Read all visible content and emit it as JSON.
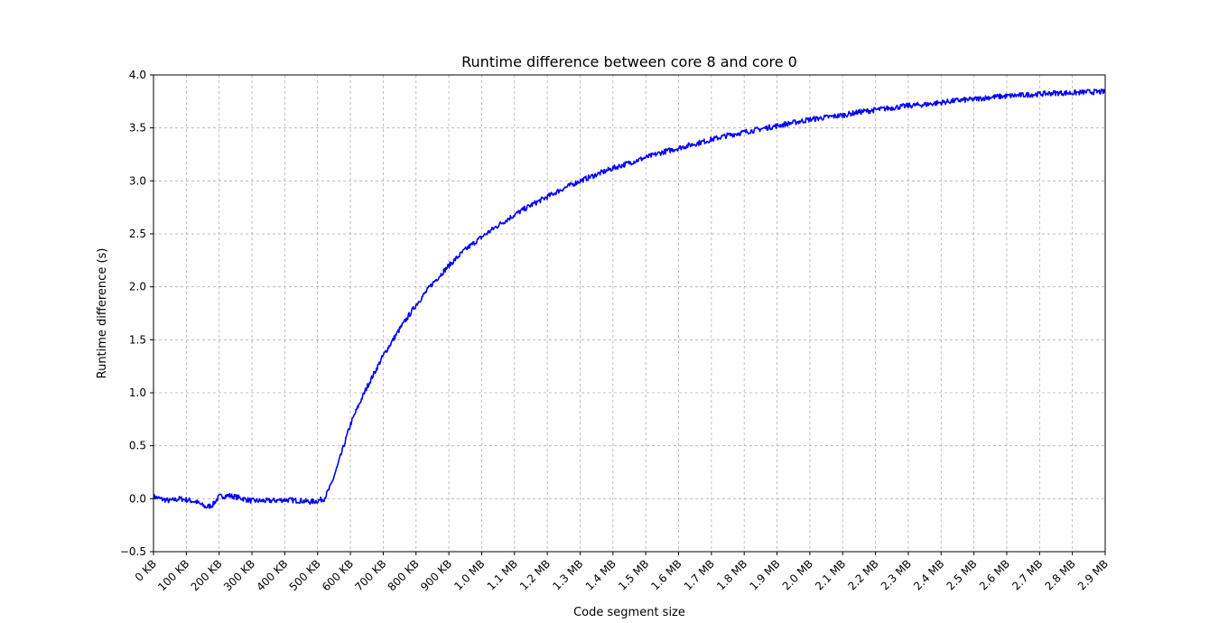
{
  "chart_data": {
    "type": "line",
    "title": "Runtime difference between core 8 and core 0",
    "xlabel": "Code segment size",
    "ylabel": "Runtime difference (s)",
    "x_tick_labels": [
      "0 KB",
      "100 KB",
      "200 KB",
      "300 KB",
      "400 KB",
      "500 KB",
      "600 KB",
      "700 KB",
      "800 KB",
      "900 KB",
      "1.0 MB",
      "1.1 MB",
      "1.2 MB",
      "1.3 MB",
      "1.4 MB",
      "1.5 MB",
      "1.6 MB",
      "1.7 MB",
      "1.8 MB",
      "1.9 MB",
      "2.0 MB",
      "2.1 MB",
      "2.2 MB",
      "2.3 MB",
      "2.4 MB",
      "2.5 MB",
      "2.6 MB",
      "2.7 MB",
      "2.8 MB",
      "2.9 MB"
    ],
    "y_tick_labels": [
      "−0.5",
      "0.0",
      "0.5",
      "1.0",
      "1.5",
      "2.0",
      "2.5",
      "3.0",
      "3.5",
      "4.0"
    ],
    "xlim": [
      0,
      2900
    ],
    "ylim": [
      -0.5,
      4.0
    ],
    "x_unit": "KB",
    "grid": true,
    "line_color": "#0000ff",
    "series": [
      {
        "x": [
          0,
          20,
          50,
          80,
          100,
          130,
          160,
          180,
          200,
          230,
          260,
          300,
          350,
          400,
          450,
          480,
          500,
          520,
          540,
          560,
          580,
          600,
          625,
          650,
          675,
          700,
          750,
          800,
          850,
          900,
          950,
          1000,
          1050,
          1100,
          1150,
          1200,
          1250,
          1300,
          1350,
          1400,
          1450,
          1500,
          1550,
          1600,
          1650,
          1700,
          1750,
          1800,
          1850,
          1900,
          1950,
          2000,
          2050,
          2100,
          2150,
          2200,
          2250,
          2300,
          2350,
          2400,
          2450,
          2500,
          2550,
          2600,
          2650,
          2700,
          2750,
          2800,
          2850,
          2900
        ],
        "y": [
          0.02,
          0.0,
          -0.02,
          0.0,
          -0.01,
          -0.03,
          -0.08,
          -0.06,
          0.02,
          0.03,
          0.01,
          -0.02,
          -0.02,
          -0.01,
          -0.02,
          -0.03,
          -0.02,
          0.0,
          0.12,
          0.3,
          0.5,
          0.7,
          0.88,
          1.05,
          1.2,
          1.35,
          1.6,
          1.83,
          2.03,
          2.2,
          2.35,
          2.47,
          2.58,
          2.68,
          2.77,
          2.85,
          2.93,
          3.0,
          3.06,
          3.12,
          3.17,
          3.22,
          3.27,
          3.31,
          3.35,
          3.39,
          3.43,
          3.46,
          3.49,
          3.52,
          3.55,
          3.58,
          3.6,
          3.62,
          3.65,
          3.67,
          3.69,
          3.71,
          3.72,
          3.74,
          3.76,
          3.77,
          3.79,
          3.8,
          3.81,
          3.82,
          3.83,
          3.83,
          3.84,
          3.84
        ]
      }
    ]
  }
}
